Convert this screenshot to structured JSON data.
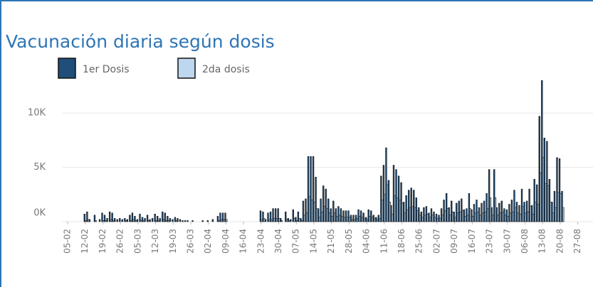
{
  "chart_data": {
    "type": "bar",
    "title": "Vacunación diaria según dosis",
    "categories": [
      "05-02",
      null,
      null,
      null,
      null,
      null,
      null,
      "12-02",
      null,
      null,
      null,
      null,
      null,
      null,
      "19-02",
      null,
      null,
      null,
      null,
      null,
      null,
      "26-02",
      null,
      null,
      null,
      null,
      null,
      null,
      "05-03",
      null,
      null,
      null,
      null,
      null,
      null,
      "12-03",
      null,
      null,
      null,
      null,
      null,
      null,
      "19-03",
      null,
      null,
      null,
      null,
      null,
      null,
      "26-03",
      null,
      null,
      null,
      null,
      null,
      null,
      "02-04",
      null,
      null,
      null,
      null,
      null,
      null,
      "09-04",
      null,
      null,
      null,
      null,
      null,
      null,
      "16-04",
      null,
      null,
      null,
      null,
      null,
      null,
      "23-04",
      null,
      null,
      null,
      null,
      null,
      null,
      "30-04",
      null,
      null,
      null,
      null,
      null,
      null,
      "07-05",
      null,
      null,
      null,
      null,
      null,
      null,
      "14-05",
      null,
      null,
      null,
      null,
      null,
      null,
      "21-05",
      null,
      null,
      null,
      null,
      null,
      null,
      "28-05",
      null,
      null,
      null,
      null,
      null,
      null,
      "04-06",
      null,
      null,
      null,
      null,
      null,
      null,
      "11-06",
      null,
      null,
      null,
      null,
      null,
      null,
      "18-06",
      null,
      null,
      null,
      null,
      null,
      null,
      "25-06",
      null,
      null,
      null,
      null,
      null,
      null,
      "02-07",
      null,
      null,
      null,
      null,
      null,
      null,
      "09-07",
      null,
      null,
      null,
      null,
      null,
      null,
      "16-07",
      null,
      null,
      null,
      null,
      null,
      null,
      "23-07",
      null,
      null,
      null,
      null,
      null,
      null,
      "30-07",
      null,
      null,
      null,
      null,
      null,
      null,
      "06-08",
      null,
      null,
      null,
      null,
      null,
      null,
      "13-08",
      null,
      null,
      null,
      null,
      null,
      null,
      "20-08",
      null,
      null,
      null,
      null,
      null,
      null,
      "27-08"
    ],
    "series": [
      {
        "name": "1er Dosis",
        "color": "#1f4e79",
        "values": [
          0,
          0,
          0,
          0,
          0,
          0,
          0,
          700,
          900,
          200,
          0,
          600,
          0,
          200,
          800,
          600,
          300,
          900,
          800,
          300,
          200,
          300,
          200,
          300,
          200,
          600,
          800,
          500,
          200,
          700,
          400,
          300,
          600,
          200,
          300,
          700,
          500,
          300,
          900,
          800,
          500,
          300,
          200,
          400,
          300,
          200,
          100,
          100,
          100,
          0,
          100,
          0,
          0,
          0,
          100,
          0,
          100,
          0,
          200,
          0,
          500,
          800,
          800,
          800,
          0,
          0,
          0,
          0,
          0,
          0,
          0,
          0,
          0,
          0,
          0,
          0,
          0,
          1000,
          900,
          200,
          800,
          900,
          1200,
          1200,
          1200,
          300,
          0,
          900,
          300,
          200,
          1100,
          400,
          900,
          300,
          1900,
          2100,
          6000,
          6000,
          6000,
          4100,
          1200,
          2100,
          3300,
          3000,
          2100,
          1200,
          1900,
          1200,
          1400,
          1200,
          1000,
          1000,
          1000,
          600,
          600,
          600,
          1100,
          1000,
          800,
          400,
          1100,
          1000,
          600,
          400,
          600,
          4200,
          5200,
          6800,
          3800,
          1500,
          5200,
          4800,
          4200,
          3600,
          1800,
          2400,
          2900,
          3100,
          2900,
          2200,
          1300,
          900,
          1300,
          1400,
          800,
          1200,
          900,
          700,
          600,
          1200,
          2000,
          2600,
          1300,
          1900,
          900,
          1700,
          1900,
          2100,
          1100,
          1200,
          2600,
          1100,
          1600,
          2000,
          1300,
          1700,
          1900,
          2600,
          4800,
          1300,
          4800,
          1300,
          1700,
          1900,
          1200,
          1100,
          1600,
          2000,
          2900,
          1800,
          1500,
          3000,
          1800,
          1900,
          3000,
          1500,
          3900,
          3400,
          9700,
          13000,
          7700,
          7400,
          3900,
          1800,
          2800,
          5900,
          5800,
          2800,
          0,
          0,
          0,
          0,
          0,
          0
        ]
      },
      {
        "name": "2da dosis",
        "color": "#bdd7ee",
        "values": [
          0,
          0,
          0,
          0,
          0,
          0,
          0,
          100,
          200,
          0,
          0,
          100,
          0,
          0,
          100,
          100,
          0,
          200,
          100,
          0,
          0,
          0,
          0,
          100,
          0,
          100,
          200,
          100,
          0,
          100,
          100,
          0,
          100,
          0,
          0,
          100,
          100,
          0,
          200,
          100,
          100,
          0,
          0,
          100,
          0,
          0,
          0,
          0,
          0,
          0,
          0,
          0,
          0,
          0,
          0,
          0,
          0,
          0,
          0,
          0,
          100,
          200,
          200,
          200,
          0,
          0,
          0,
          0,
          0,
          0,
          0,
          0,
          0,
          0,
          0,
          0,
          0,
          200,
          300,
          0,
          200,
          200,
          300,
          300,
          300,
          100,
          0,
          200,
          100,
          0,
          300,
          100,
          300,
          100,
          600,
          800,
          2300,
          2000,
          1800,
          1200,
          400,
          900,
          1400,
          1200,
          800,
          500,
          800,
          500,
          600,
          500,
          400,
          400,
          400,
          200,
          200,
          300,
          500,
          400,
          300,
          200,
          500,
          400,
          300,
          200,
          300,
          2000,
          2500,
          3400,
          1800,
          700,
          2400,
          2200,
          2000,
          1700,
          800,
          1100,
          1300,
          1400,
          1300,
          1000,
          600,
          400,
          600,
          700,
          400,
          600,
          400,
          300,
          300,
          600,
          1000,
          1200,
          600,
          900,
          400,
          800,
          900,
          1000,
          500,
          600,
          1200,
          500,
          800,
          900,
          600,
          800,
          900,
          1200,
          2200,
          600,
          2200,
          600,
          800,
          900,
          600,
          500,
          800,
          900,
          1300,
          800,
          700,
          1400,
          800,
          900,
          1400,
          700,
          1800,
          1600,
          4500,
          5900,
          3500,
          3300,
          1800,
          800,
          1300,
          2700,
          2600,
          1300,
          0,
          0,
          0,
          0,
          0,
          0
        ]
      }
    ],
    "ylim": [
      0,
      14000
    ],
    "yticks": [
      {
        "value": 0,
        "label": "0K"
      },
      {
        "value": 5000,
        "label": "5K"
      },
      {
        "value": 10000,
        "label": "10K"
      }
    ],
    "grid": true
  }
}
